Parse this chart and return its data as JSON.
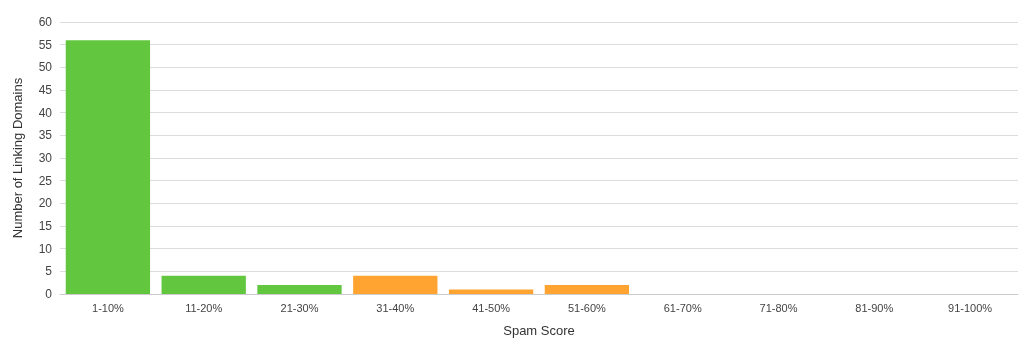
{
  "chart_data": {
    "type": "bar",
    "xlabel": "Spam Score",
    "ylabel": "Number of Linking Domains",
    "categories": [
      "1-10%",
      "11-20%",
      "21-30%",
      "31-40%",
      "41-50%",
      "51-60%",
      "61-70%",
      "71-80%",
      "81-90%",
      "91-100%"
    ],
    "values": [
      56,
      4,
      2,
      4,
      1,
      2,
      0,
      0,
      0,
      0
    ],
    "colors": [
      "#62c73e",
      "#62c73e",
      "#62c73e",
      "#ffa331",
      "#ffa331",
      "#ffa331",
      "#ffa331",
      "#ffa331",
      "#ffa331",
      "#ffa331"
    ],
    "ylim": [
      0,
      60
    ],
    "yticks": [
      0,
      5,
      10,
      15,
      20,
      25,
      30,
      35,
      40,
      45,
      50,
      55,
      60
    ],
    "grid": "y"
  }
}
